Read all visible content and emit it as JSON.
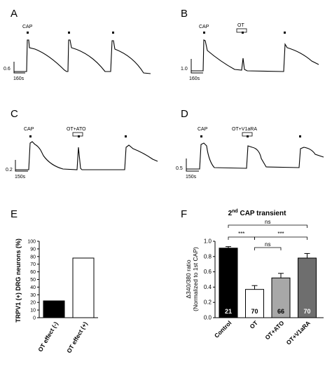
{
  "panels": {
    "A": {
      "label": "A",
      "markers": [
        "CAP"
      ],
      "scale_y": "0.6",
      "scale_x": "160s"
    },
    "B": {
      "label": "B",
      "markers": [
        "CAP",
        "OT"
      ],
      "scale_y": "1.0",
      "scale_x": "160s"
    },
    "C": {
      "label": "C",
      "markers": [
        "CAP",
        "OT+ATO"
      ],
      "scale_y": "0.2",
      "scale_x": "150s"
    },
    "D": {
      "label": "D",
      "markers": [
        "CAP",
        "OT+V1aRA"
      ],
      "scale_y": "0.5",
      "scale_x": "150s"
    },
    "E": {
      "label": "E"
    },
    "F": {
      "label": "F"
    }
  },
  "chart_data": [
    {
      "type": "bar",
      "panel": "E",
      "categories": [
        "OT effect (-)",
        "OT effect (+)"
      ],
      "values": [
        22,
        78
      ],
      "ylabel": "TRPV1 (+) DRG neurons (%)",
      "ylim": [
        0,
        100
      ],
      "yticks": [
        0,
        10,
        20,
        30,
        40,
        50,
        60,
        70,
        80,
        90,
        100
      ],
      "colors": [
        "#000000",
        "#ffffff"
      ]
    },
    {
      "type": "bar",
      "panel": "F",
      "title_main": "2",
      "title_sup": "nd",
      "title_rest": " CAP transient",
      "categories": [
        "Control",
        "OT",
        "OT+ATO",
        "OT+V1aRA"
      ],
      "values": [
        0.91,
        0.37,
        0.52,
        0.78
      ],
      "errors": [
        0.02,
        0.05,
        0.06,
        0.06
      ],
      "n": [
        "21",
        "70",
        "66",
        "70"
      ],
      "ylabel1": "Δ340/380 ratio",
      "ylabel2": "(Normalized to 1st CAP)",
      "ylim": [
        0,
        1.0
      ],
      "yticks": [
        "0.0",
        "0.2",
        "0.4",
        "0.6",
        "0.8",
        "1.0"
      ],
      "colors": [
        "#000000",
        "#ffffff",
        "#a8a8a8",
        "#6e6e6e"
      ],
      "significance": [
        {
          "from": 0,
          "to": 3,
          "label": "ns"
        },
        {
          "from": 0,
          "to": 1,
          "label": "***"
        },
        {
          "from": 1,
          "to": 2,
          "label": "ns"
        },
        {
          "from": 1,
          "to": 3,
          "label": "***"
        }
      ]
    }
  ]
}
